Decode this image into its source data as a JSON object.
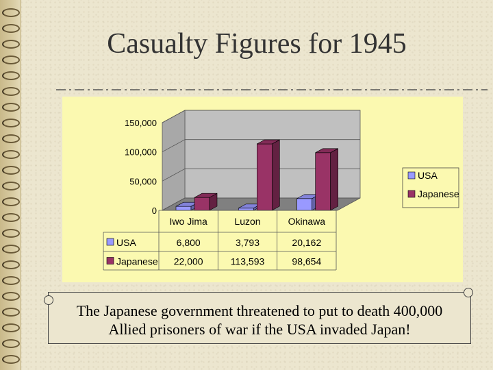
{
  "slide": {
    "title": "Casualty Figures for 1945",
    "note_line1": "The Japanese government threatened to put to death 400,000",
    "note_line2": "Allied prisoners of war if the USA invaded Japan!"
  },
  "chart_data": {
    "type": "bar",
    "categories": [
      "Iwo Jima",
      "Luzon",
      "Okinawa"
    ],
    "series": [
      {
        "name": "USA",
        "values": [
          6800,
          3793,
          20162
        ],
        "labels": [
          "6,800",
          "3,793",
          "20,162"
        ],
        "color": "#9999ff"
      },
      {
        "name": "Japanese",
        "values": [
          22000,
          113593,
          98654
        ],
        "labels": [
          "22,000",
          "113,593",
          "98,654"
        ],
        "color": "#993366"
      }
    ],
    "ylim": [
      0,
      150000
    ],
    "yticks": [
      0,
      50000,
      100000,
      150000
    ],
    "ytick_labels": [
      "0",
      "50,000",
      "100,000",
      "150,000"
    ],
    "three_d": true,
    "legend_position": "right",
    "data_table": true,
    "colors": {
      "panel": "#fbf9b0",
      "plot_wall": "#c0c0c0",
      "floor": "#808080"
    }
  }
}
